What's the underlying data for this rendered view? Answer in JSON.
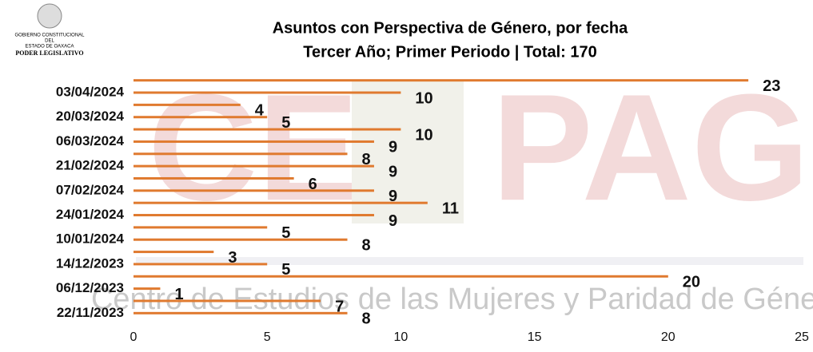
{
  "chart_data": {
    "type": "bar",
    "orientation": "horizontal",
    "title": "Asuntos con Perspectiva de Género, por fecha",
    "subtitle": "Tercer Año; Primer Periodo | Total: 170",
    "categories": [
      null,
      "03/04/2024",
      null,
      "20/03/2024",
      null,
      "06/03/2024",
      null,
      "21/02/2024",
      null,
      "07/02/2024",
      null,
      "24/01/2024",
      null,
      "10/01/2024",
      null,
      "14/12/2023",
      null,
      "06/12/2023",
      null,
      "22/11/2023"
    ],
    "values": [
      23,
      10,
      4,
      5,
      10,
      9,
      8,
      9,
      6,
      9,
      11,
      9,
      5,
      8,
      3,
      5,
      20,
      1,
      7,
      8
    ],
    "color": "#e07a2f",
    "xlim": [
      0,
      25
    ],
    "xticks": [
      0,
      5,
      10,
      15,
      20,
      25
    ],
    "grid": false
  },
  "logo": {
    "line1": "GOBIERNO CONSTITUCIONAL",
    "line2": "DEL",
    "line3": "ESTADO DE OAXACA",
    "line4": "PODER LEGISLATIVO"
  },
  "watermark": {
    "letters_left": "CE",
    "letters_right": "PAG",
    "text": "Centro de Estudios de las Mujeres y Paridad de Género"
  }
}
